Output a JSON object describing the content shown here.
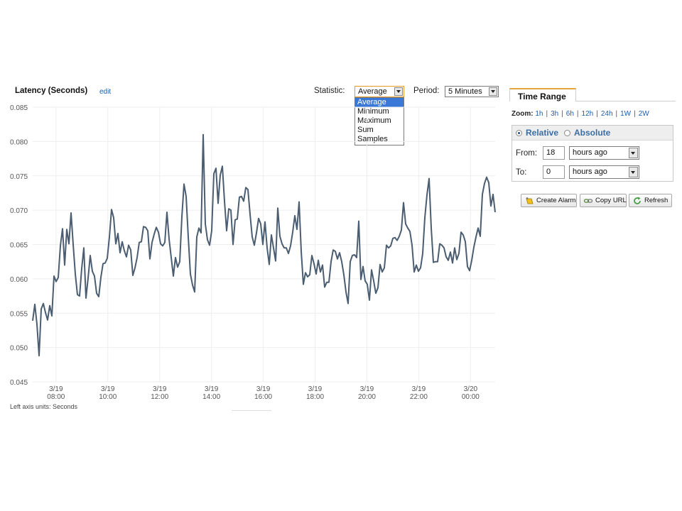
{
  "header": {
    "title": "Latency (Seconds)",
    "edit_label": "edit",
    "statistic_label": "Statistic:",
    "statistic_value": "Average",
    "statistic_options": [
      "Average",
      "Minimum",
      "Maximum",
      "Sum",
      "Samples"
    ],
    "period_label": "Period:",
    "period_value": "5 Minutes"
  },
  "chart": {
    "units_note": "Left axis units: Seconds",
    "line_color": "#4b5d70"
  },
  "chart_data": {
    "type": "line",
    "title": "Latency (Seconds)",
    "ylim": [
      0.045,
      0.085
    ],
    "y_ticks": [
      "0.085",
      "0.080",
      "0.075",
      "0.070",
      "0.065",
      "0.060",
      "0.055",
      "0.050",
      "0.045"
    ],
    "x_ticks": [
      {
        "date": "3/19",
        "time": "08:00"
      },
      {
        "date": "3/19",
        "time": "10:00"
      },
      {
        "date": "3/19",
        "time": "12:00"
      },
      {
        "date": "3/19",
        "time": "14:00"
      },
      {
        "date": "3/19",
        "time": "16:00"
      },
      {
        "date": "3/19",
        "time": "18:00"
      },
      {
        "date": "3/19",
        "time": "20:00"
      },
      {
        "date": "3/19",
        "time": "22:00"
      },
      {
        "date": "3/20",
        "time": "00:00"
      }
    ],
    "x_start_hour": 7.1,
    "x_end_hour": 24.95,
    "grid": true,
    "series": [
      {
        "values": [
          0.0539,
          0.0563,
          0.0534,
          0.0488,
          0.0556,
          0.0564,
          0.0551,
          0.054,
          0.0561,
          0.0546,
          0.0604,
          0.0596,
          0.0602,
          0.0648,
          0.0673,
          0.062,
          0.0672,
          0.0651,
          0.0696,
          0.065,
          0.0607,
          0.0577,
          0.0575,
          0.0615,
          0.0645,
          0.0572,
          0.0601,
          0.0634,
          0.0611,
          0.0604,
          0.0579,
          0.0574,
          0.0602,
          0.0622,
          0.0623,
          0.063,
          0.0661,
          0.0701,
          0.0689,
          0.0651,
          0.0666,
          0.0638,
          0.0654,
          0.0641,
          0.0632,
          0.0649,
          0.0642,
          0.0605,
          0.0616,
          0.0631,
          0.0653,
          0.0654,
          0.0676,
          0.0675,
          0.067,
          0.0629,
          0.0653,
          0.0665,
          0.0675,
          0.0668,
          0.0651,
          0.0648,
          0.0653,
          0.0697,
          0.0658,
          0.0631,
          0.0604,
          0.0631,
          0.0617,
          0.0625,
          0.069,
          0.0738,
          0.072,
          0.0661,
          0.0607,
          0.0591,
          0.0581,
          0.0661,
          0.0674,
          0.0667,
          0.081,
          0.068,
          0.0657,
          0.0649,
          0.067,
          0.0753,
          0.0761,
          0.071,
          0.0751,
          0.0764,
          0.0713,
          0.067,
          0.0702,
          0.07,
          0.065,
          0.0686,
          0.0687,
          0.0719,
          0.072,
          0.0713,
          0.0733,
          0.073,
          0.0694,
          0.0661,
          0.0649,
          0.0667,
          0.0688,
          0.068,
          0.065,
          0.0683,
          0.0645,
          0.0621,
          0.0664,
          0.0645,
          0.0626,
          0.0703,
          0.0662,
          0.0651,
          0.0645,
          0.0645,
          0.0637,
          0.0648,
          0.0668,
          0.0692,
          0.0672,
          0.0712,
          0.064,
          0.0592,
          0.0609,
          0.0603,
          0.0606,
          0.0634,
          0.0622,
          0.0607,
          0.0627,
          0.061,
          0.062,
          0.0588,
          0.0595,
          0.0595,
          0.0625,
          0.0642,
          0.064,
          0.0629,
          0.0638,
          0.0625,
          0.0606,
          0.0581,
          0.0564,
          0.0625,
          0.0634,
          0.0635,
          0.0631,
          0.0684,
          0.0599,
          0.0618,
          0.0597,
          0.0592,
          0.0569,
          0.0613,
          0.0597,
          0.0579,
          0.0587,
          0.0621,
          0.061,
          0.0616,
          0.0649,
          0.0645,
          0.0648,
          0.0659,
          0.066,
          0.0656,
          0.0662,
          0.0671,
          0.0711,
          0.068,
          0.0674,
          0.0669,
          0.0649,
          0.061,
          0.062,
          0.0611,
          0.0616,
          0.0637,
          0.0689,
          0.0722,
          0.0746,
          0.0674,
          0.0624,
          0.0625,
          0.0625,
          0.0651,
          0.0649,
          0.0645,
          0.0632,
          0.0627,
          0.0639,
          0.0623,
          0.0645,
          0.0628,
          0.0637,
          0.0668,
          0.0664,
          0.0654,
          0.0618,
          0.0612,
          0.0627,
          0.0646,
          0.0661,
          0.0674,
          0.0662,
          0.0723,
          0.0739,
          0.0748,
          0.074,
          0.0706,
          0.0723,
          0.0697
        ]
      }
    ]
  },
  "time_range": {
    "tab_label": "Time Range",
    "zoom_label": "Zoom:",
    "zoom_options": [
      "1h",
      "3h",
      "6h",
      "12h",
      "24h",
      "1W",
      "2W"
    ],
    "relative_label": "Relative",
    "absolute_label": "Absolute",
    "from_label": "From:",
    "from_value": "18",
    "from_unit": "hours ago",
    "to_label": "To:",
    "to_value": "0",
    "to_unit": "hours ago",
    "buttons": {
      "create_alarm": "Create Alarm",
      "copy_url": "Copy URL",
      "refresh": "Refresh"
    }
  }
}
